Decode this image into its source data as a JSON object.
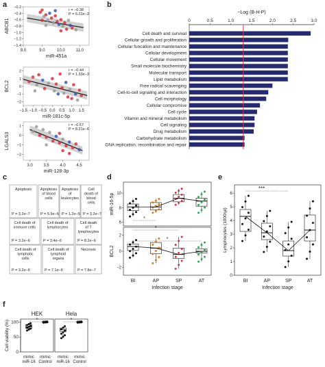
{
  "panel_labels": [
    "a",
    "b",
    "c",
    "d",
    "e",
    "f"
  ],
  "chart_data": [
    {
      "panel": "a1",
      "type": "scatter",
      "ylabel": "ABCB1",
      "xlabel": "miR-451a",
      "stat_r": "r = −0.38",
      "stat_p": "P = 6.22e−3",
      "xlim": [
        8.0,
        11.5
      ],
      "ylim": [
        -1.4,
        -0.2
      ],
      "xticks": [
        "8.0",
        "9.0",
        "10.0",
        "11.0"
      ],
      "xtick_vals": [
        8.0,
        9.0,
        10.0,
        11.0
      ],
      "yticks": [
        "−0.2",
        "−0.4",
        "−0.6",
        "−0.8",
        "−1.0",
        "−1.2",
        "−1.4"
      ],
      "ytick_vals": [
        -0.2,
        -0.4,
        -0.6,
        -0.8,
        -1.0,
        -1.2,
        -1.4
      ],
      "fit": [
        [
          8.2,
          -0.55
        ],
        [
          11.2,
          -0.85
        ]
      ],
      "points": [
        [
          8.9,
          -0.37,
          "r"
        ],
        [
          9.0,
          -0.3,
          "r"
        ],
        [
          9.1,
          -0.5,
          "gr"
        ],
        [
          9.2,
          -0.45,
          "r"
        ],
        [
          9.3,
          -0.62,
          "gr"
        ],
        [
          9.4,
          -0.4,
          "b"
        ],
        [
          9.5,
          -0.55,
          "r"
        ],
        [
          9.6,
          -0.7,
          "gr"
        ],
        [
          9.7,
          -0.48,
          "r"
        ],
        [
          9.8,
          -0.66,
          "r"
        ],
        [
          9.9,
          -0.75,
          "b"
        ],
        [
          10.0,
          -0.6,
          "r"
        ],
        [
          10.1,
          -0.8,
          "gr"
        ],
        [
          10.2,
          -0.7,
          "r"
        ],
        [
          10.3,
          -0.9,
          "r"
        ],
        [
          10.4,
          -0.62,
          "gr"
        ],
        [
          10.5,
          -0.78,
          "b"
        ],
        [
          10.6,
          -0.86,
          "r"
        ],
        [
          9.2,
          -0.78,
          "gr"
        ],
        [
          9.7,
          -0.32,
          "b"
        ],
        [
          10.8,
          -0.92,
          "gr"
        ],
        [
          9.0,
          -0.62,
          "r"
        ],
        [
          10.0,
          -0.95,
          "r"
        ]
      ]
    },
    {
      "panel": "a2",
      "type": "scatter",
      "ylabel": "BCL2",
      "xlabel": "miR-181c-5p",
      "stat_r": "r = −0.44",
      "stat_p": "P = 1.33e−3",
      "xlim": [
        -1.5,
        1.9
      ],
      "ylim": [
        -2.5,
        2.5
      ],
      "xticks": [
        "−1.5",
        "−1.0",
        "−0.5",
        "0.0",
        "0.5",
        "1.0",
        "1.5"
      ],
      "xtick_vals": [
        -1.5,
        -1.0,
        -0.5,
        0.0,
        0.5,
        1.0,
        1.5
      ],
      "yticks": [
        "2",
        "1",
        "0",
        "−1",
        "−2"
      ],
      "ytick_vals": [
        2,
        1,
        0,
        -1,
        -2
      ],
      "fit": [
        [
          -1.5,
          0.9
        ],
        [
          1.8,
          -1.2
        ]
      ],
      "points": [
        [
          -1.2,
          0.6,
          "r"
        ],
        [
          -1.0,
          1.2,
          "r"
        ],
        [
          -0.8,
          0.2,
          "gr"
        ],
        [
          -0.7,
          1.5,
          "r"
        ],
        [
          -0.5,
          0.8,
          "b"
        ],
        [
          -0.4,
          -0.3,
          "r"
        ],
        [
          -0.2,
          0.4,
          "gr"
        ],
        [
          0.0,
          1.0,
          "r"
        ],
        [
          0.1,
          -0.6,
          "gr"
        ],
        [
          0.2,
          0.3,
          "r"
        ],
        [
          0.3,
          -1.0,
          "b"
        ],
        [
          0.4,
          1.6,
          "r"
        ],
        [
          0.5,
          -0.2,
          "r"
        ],
        [
          0.6,
          -0.9,
          "gr"
        ],
        [
          0.7,
          0.5,
          "b"
        ],
        [
          0.8,
          -1.4,
          "r"
        ],
        [
          0.9,
          -0.4,
          "gr"
        ],
        [
          1.0,
          -1.6,
          "r"
        ],
        [
          1.1,
          0.2,
          "r"
        ],
        [
          1.2,
          -1.0,
          "b"
        ],
        [
          1.3,
          -1.8,
          "gr"
        ],
        [
          1.4,
          -0.5,
          "r"
        ],
        [
          1.5,
          -1.2,
          "r"
        ],
        [
          -0.9,
          -0.6,
          "gr"
        ]
      ]
    },
    {
      "panel": "a3",
      "type": "scatter",
      "ylabel": "LGALS3",
      "xlabel": "miR-128-3p",
      "stat_r": "r = −0.57",
      "stat_p": "P = 8.21e−6",
      "xlim": [
        2.8,
        4.8
      ],
      "ylim": [
        -2.6,
        1.4
      ],
      "xticks": [
        "3.0",
        "3.5",
        "4.0",
        "4.5"
      ],
      "xtick_vals": [
        3.0,
        3.5,
        4.0,
        4.5
      ],
      "yticks": [
        "1",
        "0",
        "−1",
        "−2"
      ],
      "ytick_vals": [
        1,
        0,
        -1,
        -2
      ],
      "fit": [
        [
          3.0,
          0.6
        ],
        [
          4.6,
          -1.6
        ]
      ],
      "points": [
        [
          3.1,
          0.4,
          "gr"
        ],
        [
          3.2,
          0.9,
          "gr"
        ],
        [
          3.3,
          0.0,
          "r"
        ],
        [
          3.4,
          0.6,
          "gr"
        ],
        [
          3.5,
          -0.2,
          "r"
        ],
        [
          3.6,
          0.3,
          "gr"
        ],
        [
          3.7,
          -0.6,
          "r"
        ],
        [
          3.8,
          -0.1,
          "b"
        ],
        [
          3.9,
          -0.8,
          "r"
        ],
        [
          4.0,
          -0.4,
          "gr"
        ],
        [
          4.1,
          -1.1,
          "r"
        ],
        [
          4.2,
          -0.7,
          "b"
        ],
        [
          4.3,
          -1.3,
          "r"
        ],
        [
          4.4,
          -0.9,
          "r"
        ],
        [
          4.5,
          -1.5,
          "b"
        ],
        [
          4.0,
          -1.6,
          "r"
        ],
        [
          3.5,
          -1.0,
          "gr"
        ],
        [
          4.2,
          -1.9,
          "r"
        ],
        [
          3.9,
          0.2,
          "r"
        ]
      ]
    },
    {
      "panel": "b",
      "type": "bar",
      "title": "−Log (B-H-P)",
      "xlim": [
        0,
        3.0
      ],
      "threshold": 1.3,
      "xticks": [
        "0",
        "0.5",
        "1.0",
        "1.5",
        "2.0",
        "2.5",
        "3.0"
      ],
      "xtick_vals": [
        0,
        0.5,
        1.0,
        1.5,
        2.0,
        2.5,
        3.0
      ],
      "categories": [
        "Cell death and survival",
        "Cellular growth and proliferation",
        "Cellular funcation and maintenance",
        "Cellular development",
        "Cellular movement",
        "Small molecule biochemistry",
        "Molecular transport",
        "Lipid metabolism",
        "Free radical scavenging",
        "Cell-to-cell signaling and interaction",
        "Cell morphology",
        "Cellular compromise",
        "Cell cycle",
        "Vitamin and mineral metabolism",
        "Cell signaling",
        "Drug metabolism",
        "Carbohydrate metabolism",
        "DNA replication, recombination and repair"
      ],
      "values": [
        2.92,
        2.38,
        2.37,
        2.37,
        2.37,
        2.37,
        2.37,
        2.37,
        2.0,
        1.9,
        1.85,
        1.7,
        1.63,
        1.57,
        1.57,
        1.55,
        1.33,
        1.33
      ]
    },
    {
      "panel": "c",
      "type": "table",
      "cells": [
        {
          "name": "Apoptosis",
          "p": "P = 3.2e−7"
        },
        {
          "name": "Apoptosis of blood cells",
          "p": "P = 5.9e−6"
        },
        {
          "name": "Apoptosis of leukocytes",
          "p": "P = 1.2e−5"
        },
        {
          "name": "Cell death of blood cells",
          "p": "P = 3.2e−7"
        },
        {
          "name": "Cell death of immune cells",
          "p": "P = 3.2e−6"
        },
        {
          "name": "Cell death of lymphocytes",
          "p": "P = 3.4e−6"
        },
        {
          "name": "Cell death of T lymphocytes",
          "p": "P = 8.2e−6"
        },
        {
          "name": "Cell death of lymphatic cells",
          "p": "P = 3.2e−6"
        },
        {
          "name": "Cell death of lymphoid organs",
          "p": "P = 7.1e−6"
        },
        {
          "name": "Necrosis",
          "p": "P = 7.8e−7"
        }
      ]
    },
    {
      "panel": "d",
      "type": "box",
      "xlabel": "Infection stage",
      "categories": [
        "BI",
        "AP",
        "SP",
        "AT"
      ],
      "series": [
        {
          "name": "miR-16-5p",
          "yticks": [
            "10",
            "8",
            "6"
          ],
          "ytick_vals": [
            10,
            8,
            6
          ],
          "ylim": [
            5.5,
            11.5
          ],
          "boxes": [
            [
              6.8,
              7.6,
              8.1,
              8.5,
              9.2
            ],
            [
              7.3,
              7.7,
              8.1,
              8.7,
              9.2
            ],
            [
              8.4,
              8.8,
              9.3,
              9.8,
              10.6
            ],
            [
              7.3,
              8.2,
              8.9,
              9.3,
              10.2
            ]
          ],
          "medians_line": [
            8.1,
            8.1,
            9.3,
            8.9
          ]
        },
        {
          "name": "BCL2",
          "yticks": [
            "2",
            "0",
            "−2"
          ],
          "ytick_vals": [
            2,
            0,
            -2
          ],
          "ylim": [
            -3.0,
            3.0
          ],
          "boxes": [
            [
              -0.8,
              0.1,
              0.6,
              0.9,
              1.4
            ],
            [
              -1.5,
              -0.3,
              0.4,
              1.1,
              1.6
            ],
            [
              -2.2,
              -0.9,
              -0.4,
              0.4,
              1.8
            ],
            [
              -1.3,
              -0.2,
              0.0,
              0.3,
              1.1
            ]
          ],
          "medians_line": [
            0.6,
            0.4,
            -0.4,
            0.0
          ]
        }
      ],
      "significance": [
        "*",
        "*",
        "*"
      ]
    },
    {
      "panel": "e",
      "type": "box",
      "ylabel": "Lymphocytes (1000/μl)",
      "xlabel": "Infection stage",
      "categories": [
        "BI",
        "AP",
        "SP",
        "AT"
      ],
      "yticks": [
        "0",
        "1",
        "2",
        "3",
        "4",
        "5",
        "6"
      ],
      "ytick_vals": [
        0,
        1,
        2,
        3,
        4,
        5,
        6
      ],
      "ylim": [
        0,
        6.6
      ],
      "boxes": [
        [
          2.5,
          3.2,
          4.3,
          4.8,
          5.8
        ],
        [
          1.7,
          2.6,
          3.1,
          3.8,
          4.7
        ],
        [
          0.6,
          1.4,
          1.8,
          2.5,
          3.9
        ],
        [
          1.2,
          2.5,
          3.3,
          4.4,
          5.4
        ]
      ],
      "medians_line": [
        4.3,
        3.1,
        1.8,
        3.3
      ],
      "significance": "***"
    },
    {
      "panel": "f",
      "type": "box",
      "ylabel": "Cell viability (%)",
      "yticks": [
        "0",
        "50",
        "100"
      ],
      "ytick_vals": [
        0,
        50,
        100
      ],
      "ylim": [
        0,
        110
      ],
      "groups": [
        {
          "title": "HEK",
          "categories": [
            "mimic miR-16",
            "mimic Control"
          ],
          "boxes": [
            [
              72,
              79,
              84,
              91,
              96
            ],
            [
              98,
              99,
              100,
              101,
              102
            ]
          ],
          "significance": "*"
        },
        {
          "title": "Hela",
          "categories": [
            "mimic miR-16",
            "mimic Control"
          ],
          "boxes": [
            [
              46,
              68,
              74,
              80,
              86
            ],
            [
              98,
              99,
              100,
              101,
              102
            ]
          ],
          "significance": "*"
        }
      ]
    }
  ]
}
